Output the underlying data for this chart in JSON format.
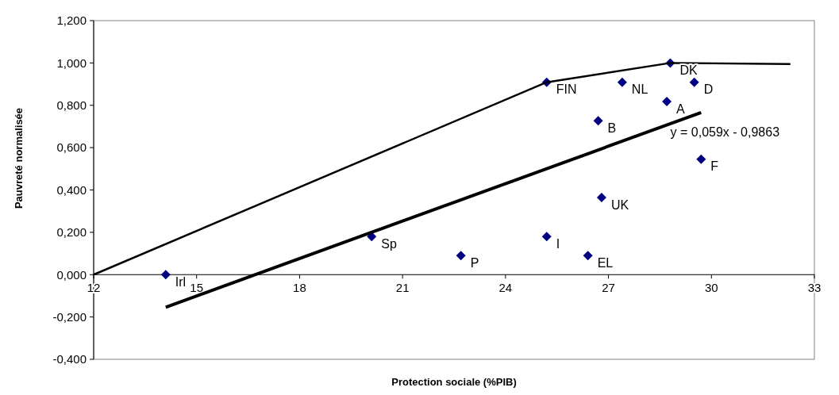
{
  "chart_data": {
    "type": "scatter",
    "xlabel": "Protection sociale (%PIB)",
    "ylabel": "Pauvreté normalisée",
    "xlim": [
      12,
      33
    ],
    "xticks": [
      12,
      15,
      18,
      21,
      24,
      27,
      30,
      33
    ],
    "ylim": [
      -0.4,
      1.2
    ],
    "yticks": [
      {
        "value": -0.4,
        "label": "-0,400"
      },
      {
        "value": -0.2,
        "label": "-0,200"
      },
      {
        "value": 0,
        "label": "0,000"
      },
      {
        "value": 0.2,
        "label": "0,200"
      },
      {
        "value": 0.4,
        "label": "0,400"
      },
      {
        "value": 0.6,
        "label": "0,600"
      },
      {
        "value": 0.8,
        "label": "0,800"
      },
      {
        "value": 1.0,
        "label": "1,000"
      },
      {
        "value": 1.2,
        "label": "1,200"
      }
    ],
    "grid": false,
    "line_style": "solid",
    "series": [
      {
        "marker": "diamond",
        "color": "#000080",
        "x": [
          14.1,
          20.1,
          22.7,
          25.2,
          26.4,
          26.8,
          29.7,
          26.7,
          28.7,
          25.2,
          27.4,
          29.5,
          28.8
        ],
        "values": [
          0,
          0.18,
          0.09,
          0.18,
          0.09,
          0.364,
          0.545,
          0.727,
          0.818,
          0.909,
          0.909,
          0.909,
          1.0
        ]
      },
      {
        "type": "line",
        "marker": "none",
        "color": "#000000",
        "x": [
          12,
          25.2,
          28.8,
          32.3
        ],
        "values": [
          0,
          0.909,
          1.0,
          0.995
        ]
      },
      {
        "type": "line",
        "marker": "none",
        "color": "#000000",
        "x": [
          14.1,
          29.7
        ],
        "values": [
          -0.154,
          0.766
        ]
      }
    ],
    "annotations": [
      {
        "text": "Irl",
        "x": 14.1,
        "y": 0
      },
      {
        "text": "Sp",
        "x": 20.1,
        "y": 0.18
      },
      {
        "text": "P",
        "x": 22.7,
        "y": 0.09
      },
      {
        "text": "I",
        "x": 25.2,
        "y": 0.18
      },
      {
        "text": "EL",
        "x": 26.4,
        "y": 0.09
      },
      {
        "text": "UK",
        "x": 26.8,
        "y": 0.364
      },
      {
        "text": "F",
        "x": 29.7,
        "y": 0.545
      },
      {
        "text": "B",
        "x": 26.7,
        "y": 0.727
      },
      {
        "text": "A",
        "x": 28.7,
        "y": 0.818
      },
      {
        "text": "FIN",
        "x": 25.2,
        "y": 0.909
      },
      {
        "text": "NL",
        "x": 27.4,
        "y": 0.909
      },
      {
        "text": "D",
        "x": 29.5,
        "y": 0.909
      },
      {
        "text": "DK",
        "x": 28.8,
        "y": 1.0
      },
      "y = 0,059x - 0,9863"
    ]
  }
}
